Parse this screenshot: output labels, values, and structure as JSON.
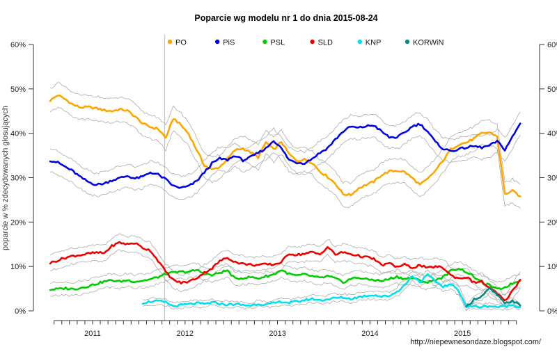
{
  "footer": {
    "url": "http://niepewnesondaze.blogspot.com/"
  },
  "chart_data": {
    "type": "line",
    "title": "Poparcie wg modelu nr 1 do dnia 2015-08-24",
    "ylabel": "poparcie w % zdecydowanych głosujących",
    "ylim": [
      0,
      60
    ],
    "y_tick_labels": [
      "0%",
      "10%",
      "20%",
      "30%",
      "40%",
      "50%",
      "60%"
    ],
    "x_tick_labels": [
      "2011",
      "2012",
      "2013",
      "2014",
      "2015"
    ],
    "x_start": "2010-07",
    "x_end": "2015-08",
    "vline_date": "2011-10",
    "grid": false,
    "legend_position": "top",
    "series": [
      {
        "name": "PO",
        "color": "#FFA500",
        "start_month": "2010-07",
        "band": 2.7,
        "values": [
          47.4,
          48.6,
          47.6,
          46.4,
          45.8,
          45.9,
          45.6,
          45.2,
          45.0,
          45.4,
          45.1,
          43.8,
          42.2,
          41.4,
          41.0,
          39.0,
          43.4,
          41.8,
          39.8,
          36.3,
          32.8,
          31.8,
          32.4,
          34.2,
          36.2,
          36.6,
          35.7,
          34.6,
          38.0,
          36.3,
          38.1,
          35.3,
          33.8,
          34.1,
          33.4,
          31.4,
          30.2,
          28.7,
          26.3,
          26.1,
          27.6,
          28.4,
          29.1,
          30.6,
          31.4,
          31.6,
          31.3,
          29.9,
          28.4,
          29.7,
          31.6,
          33.9,
          36.4,
          37.5,
          37.9,
          38.8,
          40.0,
          40.2,
          39.3,
          26.3,
          27.0,
          25.8
        ]
      },
      {
        "name": "PiS",
        "color": "#0000E6",
        "start_month": "2010-07",
        "band": 2.6,
        "values": [
          33.9,
          33.4,
          32.4,
          31.4,
          30.0,
          29.0,
          28.4,
          28.7,
          29.4,
          29.9,
          30.4,
          29.8,
          30.2,
          31.2,
          30.7,
          29.6,
          28.1,
          27.7,
          28.1,
          29.2,
          31.2,
          33.2,
          34.3,
          34.0,
          35.0,
          33.9,
          34.6,
          35.6,
          36.6,
          38.4,
          36.6,
          34.0,
          33.4,
          33.3,
          34.3,
          35.6,
          36.7,
          38.6,
          40.4,
          41.5,
          41.2,
          41.6,
          41.8,
          40.4,
          39.1,
          39.1,
          40.1,
          41.6,
          42.1,
          40.4,
          38.0,
          36.5,
          36.0,
          36.4,
          36.8,
          37.1,
          36.8,
          37.2,
          38.2,
          36.3,
          39.2,
          42.2
        ]
      },
      {
        "name": "PSL",
        "color": "#00CC00",
        "start_month": "2010-07",
        "band": 1.5,
        "values": [
          4.8,
          4.9,
          5.1,
          4.9,
          5.2,
          5.6,
          6.1,
          6.6,
          6.9,
          6.6,
          6.9,
          6.6,
          6.8,
          7.1,
          7.6,
          8.3,
          8.6,
          8.8,
          8.8,
          9.2,
          8.4,
          8.0,
          8.6,
          9.1,
          7.2,
          7.4,
          7.6,
          7.3,
          7.8,
          8.2,
          9.2,
          8.3,
          7.9,
          8.2,
          7.8,
          7.4,
          7.8,
          7.3,
          6.4,
          7.2,
          7.5,
          7.1,
          7.0,
          6.7,
          7.2,
          7.7,
          7.2,
          7.4,
          6.8,
          6.4,
          7.0,
          7.6,
          9.0,
          9.6,
          8.8,
          7.7,
          6.3,
          5.8,
          4.8,
          5.3,
          6.2,
          6.8
        ]
      },
      {
        "name": "SLD",
        "color": "#EE0000",
        "start_month": "2010-07",
        "band": 1.8,
        "values": [
          10.8,
          11.4,
          12.0,
          12.4,
          12.6,
          12.9,
          13.1,
          13.0,
          14.6,
          15.4,
          15.0,
          15.3,
          14.2,
          13.6,
          11.3,
          8.8,
          6.9,
          6.3,
          6.6,
          7.4,
          8.6,
          9.6,
          11.2,
          12.0,
          11.0,
          10.6,
          10.4,
          10.3,
          10.5,
          10.4,
          11.0,
          12.9,
          12.6,
          12.9,
          13.2,
          12.7,
          14.4,
          12.7,
          13.2,
          12.8,
          12.4,
          12.1,
          11.7,
          10.3,
          10.7,
          9.9,
          10.4,
          9.7,
          10.3,
          9.6,
          10.0,
          9.7,
          8.0,
          7.3,
          7.6,
          6.4,
          6.6,
          5.1,
          3.9,
          2.2,
          4.5,
          7.0
        ]
      },
      {
        "name": "KNP",
        "color": "#00E0EE",
        "start_month": "2011-07",
        "band": 1.1,
        "values": [
          1.8,
          2.1,
          2.2,
          1.9,
          1.0,
          1.3,
          1.5,
          1.7,
          1.5,
          1.9,
          1.6,
          1.4,
          1.5,
          1.3,
          1.2,
          1.6,
          1.4,
          1.7,
          2.1,
          1.8,
          2.1,
          2.4,
          2.7,
          2.4,
          2.6,
          2.9,
          3.0,
          2.7,
          3.1,
          3.4,
          3.6,
          3.2,
          3.4,
          4.3,
          5.8,
          7.9,
          6.5,
          8.1,
          6.6,
          5.5,
          5.9,
          4.7,
          0.9,
          1.0,
          0.9,
          1.1,
          0.9,
          1.0,
          1.3,
          0.9
        ]
      },
      {
        "name": "KORWiN",
        "color": "#008B8B",
        "start_month": "2015-01",
        "band": 1.0,
        "values": [
          0.8,
          2.6,
          3.3,
          5.0,
          3.6,
          1.6,
          2.3,
          1.2
        ]
      }
    ]
  }
}
